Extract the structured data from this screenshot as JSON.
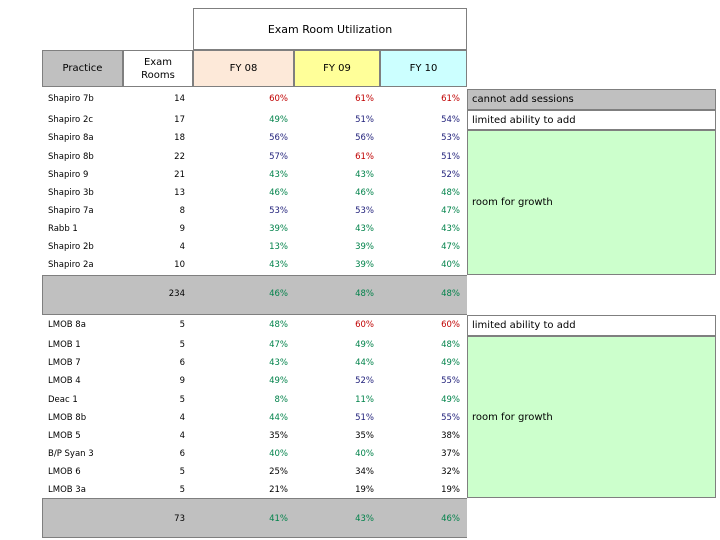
{
  "title": "Exam Room Utilization",
  "headers": {
    "practice": "Practice",
    "exam_rooms": "Exam Rooms",
    "fy08": "FY 08",
    "fy09": "FY 09",
    "fy10": "FY 10"
  },
  "group1": {
    "rows": [
      {
        "name": "Shapiro 7b",
        "rooms": "14",
        "fy08": "60%",
        "fy09": "61%",
        "fy10": "61%"
      },
      {
        "name": "Shapiro 2c",
        "rooms": "17",
        "fy08": "49%",
        "fy09": "51%",
        "fy10": "54%"
      },
      {
        "name": "Shapiro 8a",
        "rooms": "18",
        "fy08": "56%",
        "fy09": "56%",
        "fy10": "53%"
      },
      {
        "name": "Shapiro 8b",
        "rooms": "22",
        "fy08": "57%",
        "fy09": "61%",
        "fy10": "51%"
      },
      {
        "name": "Shapiro 9",
        "rooms": "21",
        "fy08": "43%",
        "fy09": "43%",
        "fy10": "52%"
      },
      {
        "name": "Shapiro 3b",
        "rooms": "13",
        "fy08": "46%",
        "fy09": "46%",
        "fy10": "48%"
      },
      {
        "name": "Shapiro 7a",
        "rooms": "8",
        "fy08": "53%",
        "fy09": "53%",
        "fy10": "47%"
      },
      {
        "name": "Rabb 1",
        "rooms": "9",
        "fy08": "39%",
        "fy09": "43%",
        "fy10": "43%"
      },
      {
        "name": "Shapiro 2b",
        "rooms": "4",
        "fy08": "13%",
        "fy09": "39%",
        "fy10": "47%"
      },
      {
        "name": "Shapiro 2a",
        "rooms": "10",
        "fy08": "43%",
        "fy09": "39%",
        "fy10": "40%"
      }
    ],
    "total": {
      "rooms": "234",
      "fy08": "46%",
      "fy09": "48%",
      "fy10": "48%"
    },
    "notes": {
      "cannot_add": "cannot add sessions",
      "limited": "limited ability to add",
      "room_for_growth": "room for growth"
    }
  },
  "group2": {
    "rows": [
      {
        "name": "LMOB 8a",
        "rooms": "5",
        "fy08": "48%",
        "fy09": "60%",
        "fy10": "60%"
      },
      {
        "name": "LMOB 1",
        "rooms": "5",
        "fy08": "47%",
        "fy09": "49%",
        "fy10": "48%"
      },
      {
        "name": "LMOB 7",
        "rooms": "6",
        "fy08": "43%",
        "fy09": "44%",
        "fy10": "49%"
      },
      {
        "name": "LMOB 4",
        "rooms": "9",
        "fy08": "49%",
        "fy09": "52%",
        "fy10": "55%"
      },
      {
        "name": "Deac 1",
        "rooms": "5",
        "fy08": "8%",
        "fy09": "11%",
        "fy10": "49%"
      },
      {
        "name": "LMOB 8b",
        "rooms": "4",
        "fy08": "44%",
        "fy09": "51%",
        "fy10": "55%"
      },
      {
        "name": "LMOB 5",
        "rooms": "4",
        "fy08": "35%",
        "fy09": "35%",
        "fy10": "38%"
      },
      {
        "name": "B/P Syan 3",
        "rooms": "6",
        "fy08": "40%",
        "fy09": "40%",
        "fy10": "37%"
      },
      {
        "name": "LMOB 6",
        "rooms": "5",
        "fy08": "25%",
        "fy09": "34%",
        "fy10": "32%"
      },
      {
        "name": "LMOB 3a",
        "rooms": "5",
        "fy08": "21%",
        "fy09": "19%",
        "fy10": "19%"
      }
    ],
    "total": {
      "rooms": "73",
      "fy08": "41%",
      "fy09": "43%",
      "fy10": "46%"
    },
    "notes": {
      "limited": "limited ability to add",
      "room_for_growth": "room for growth"
    }
  },
  "colors": {
    "red": "#c00000",
    "green": "#00824a",
    "navy": "#1f1f7a"
  }
}
